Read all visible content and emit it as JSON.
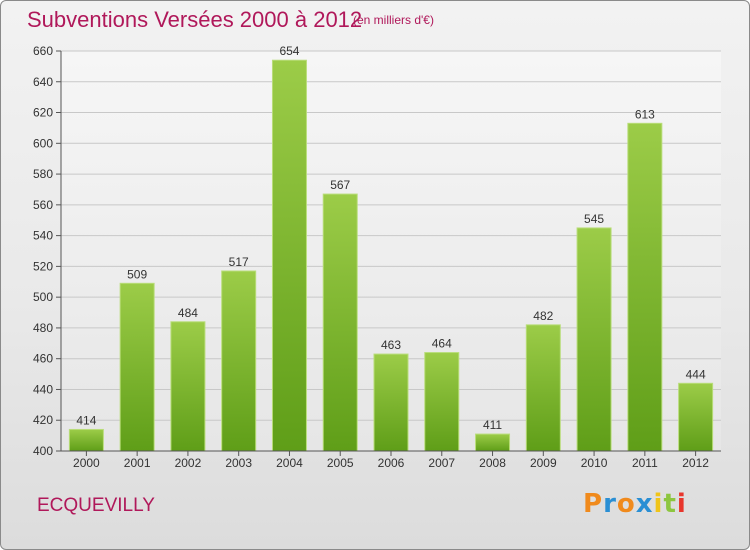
{
  "header": {
    "title": "Subventions Versées 2000 à 2012",
    "subtitle": "(en milliers d'€)"
  },
  "footer": {
    "commune": "ECQUEVILLY",
    "logo": "Proxiti"
  },
  "colors": {
    "title": "#b0185a",
    "bar_light": "#9ccc48",
    "bar_dark": "#5f9e18",
    "logo_letters": [
      "#f08a1c",
      "#2a8fd4",
      "#f08a1c",
      "#2a8fd4",
      "#f0c419",
      "#8dc63f",
      "#e8362c"
    ]
  },
  "chart_data": {
    "type": "bar",
    "categories": [
      "2000",
      "2001",
      "2002",
      "2003",
      "2004",
      "2005",
      "2006",
      "2007",
      "2008",
      "2009",
      "2010",
      "2011",
      "2012"
    ],
    "values": [
      414,
      509,
      484,
      517,
      654,
      567,
      463,
      464,
      411,
      482,
      545,
      613,
      444
    ],
    "title": "Subventions Versées 2000 à 2012",
    "subtitle": "(en milliers d'€)",
    "ylim": [
      400,
      660
    ],
    "yticks": [
      400,
      420,
      440,
      460,
      480,
      500,
      520,
      540,
      560,
      580,
      600,
      620,
      640,
      660
    ],
    "grid": true,
    "data_labels": true
  }
}
